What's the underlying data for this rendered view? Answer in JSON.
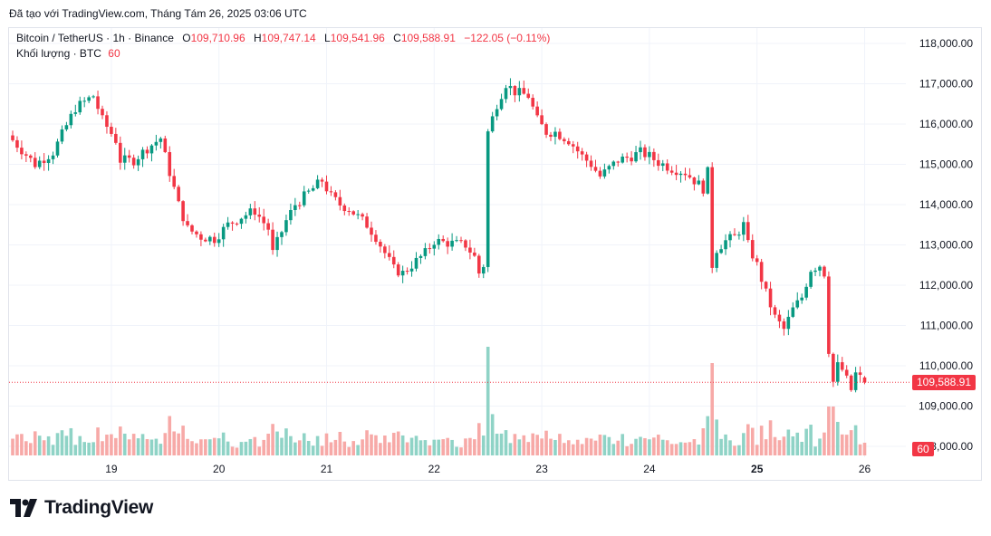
{
  "header": {
    "text": "Đã tạo với TradingView.com, Tháng Tám 26, 2025 03:06 UTC"
  },
  "legend": {
    "symbol": "Bitcoin / TetherUS · 1h · Binance",
    "open_label": "O",
    "open": "109,710.96",
    "high_label": "H",
    "high": "109,747.14",
    "low_label": "L",
    "low": "109,541.96",
    "close_label": "C",
    "close": "109,588.91",
    "change": "−122.05 (−0.11%)",
    "volume_label": "Khối lượng · BTC",
    "volume_value": "60"
  },
  "price_tag": "109,588.91",
  "volume_tag": "60",
  "logo": {
    "text": "TradingView"
  },
  "colors": {
    "up": "#089981",
    "down": "#f23645",
    "up_volume": "#8fd3c6",
    "down_volume": "#f7a9a7",
    "grid": "#f0f3fa"
  },
  "chart_data": {
    "type": "candlestick",
    "title": "Bitcoin / TetherUS · 1h · Binance",
    "ylim": [
      108000,
      118200
    ],
    "y_ticks": [
      "118,000.00",
      "117,000.00",
      "116,000.00",
      "115,000.00",
      "114,000.00",
      "113,000.00",
      "112,000.00",
      "111,000.00",
      "110,000.00",
      "109,000.00",
      "108,000.00"
    ],
    "x_ticks": [
      {
        "label": "19",
        "index": 22,
        "bold": false
      },
      {
        "label": "20",
        "index": 46,
        "bold": false
      },
      {
        "label": "21",
        "index": 70,
        "bold": false
      },
      {
        "label": "22",
        "index": 94,
        "bold": false
      },
      {
        "label": "23",
        "index": 118,
        "bold": false
      },
      {
        "label": "24",
        "index": 142,
        "bold": false
      },
      {
        "label": "25",
        "index": 166,
        "bold": true
      },
      {
        "label": "26",
        "index": 190,
        "bold": false
      }
    ],
    "keypoints": [
      [
        0,
        115600
      ],
      [
        5,
        115000
      ],
      [
        9,
        115300
      ],
      [
        14,
        116400
      ],
      [
        18,
        116700
      ],
      [
        20,
        116100
      ],
      [
        23,
        115600
      ],
      [
        24,
        115100
      ],
      [
        27,
        115100
      ],
      [
        30,
        115400
      ],
      [
        33,
        115650
      ],
      [
        34,
        115200
      ],
      [
        37,
        114000
      ],
      [
        39,
        113400
      ],
      [
        42,
        113200
      ],
      [
        45,
        113150
      ],
      [
        48,
        113500
      ],
      [
        51,
        113700
      ],
      [
        54,
        113850
      ],
      [
        57,
        113400
      ],
      [
        58,
        112800
      ],
      [
        61,
        113600
      ],
      [
        63,
        114000
      ],
      [
        66,
        114300
      ],
      [
        69,
        114600
      ],
      [
        71,
        114200
      ],
      [
        73,
        114000
      ],
      [
        75,
        113900
      ],
      [
        77,
        113700
      ],
      [
        79,
        113500
      ],
      [
        81,
        113200
      ],
      [
        83,
        112800
      ],
      [
        85,
        112400
      ],
      [
        87,
        112300
      ],
      [
        89,
        112500
      ],
      [
        92,
        112800
      ],
      [
        94,
        113100
      ],
      [
        97,
        113050
      ],
      [
        101,
        113000
      ],
      [
        103,
        112700
      ],
      [
        104,
        112300
      ],
      [
        105,
        112500
      ],
      [
        106,
        115800
      ],
      [
        108,
        116500
      ],
      [
        110,
        117000
      ],
      [
        112,
        116800
      ],
      [
        115,
        116700
      ],
      [
        117,
        116100
      ],
      [
        119,
        115800
      ],
      [
        121,
        115800
      ],
      [
        124,
        115600
      ],
      [
        127,
        115200
      ],
      [
        129,
        115000
      ],
      [
        131,
        114700
      ],
      [
        133,
        114900
      ],
      [
        135,
        115100
      ],
      [
        138,
        115200
      ],
      [
        140,
        115300
      ],
      [
        142,
        115200
      ],
      [
        144,
        115050
      ],
      [
        147,
        114900
      ],
      [
        150,
        114800
      ],
      [
        152,
        114600
      ],
      [
        154,
        114400
      ],
      [
        155,
        114800
      ],
      [
        156,
        112500
      ],
      [
        157,
        112900
      ],
      [
        159,
        113100
      ],
      [
        161,
        113200
      ],
      [
        163,
        113500
      ],
      [
        164,
        113000
      ],
      [
        166,
        112500
      ],
      [
        168,
        111800
      ],
      [
        170,
        111200
      ],
      [
        172,
        110900
      ],
      [
        174,
        111400
      ],
      [
        176,
        111700
      ],
      [
        178,
        112400
      ],
      [
        180,
        112500
      ],
      [
        181,
        112300
      ],
      [
        182,
        110400
      ],
      [
        183,
        109600
      ],
      [
        184,
        110000
      ],
      [
        185,
        109900
      ],
      [
        187,
        109400
      ],
      [
        188,
        109800
      ],
      [
        189,
        109700
      ],
      [
        190,
        109589
      ]
    ]
  }
}
